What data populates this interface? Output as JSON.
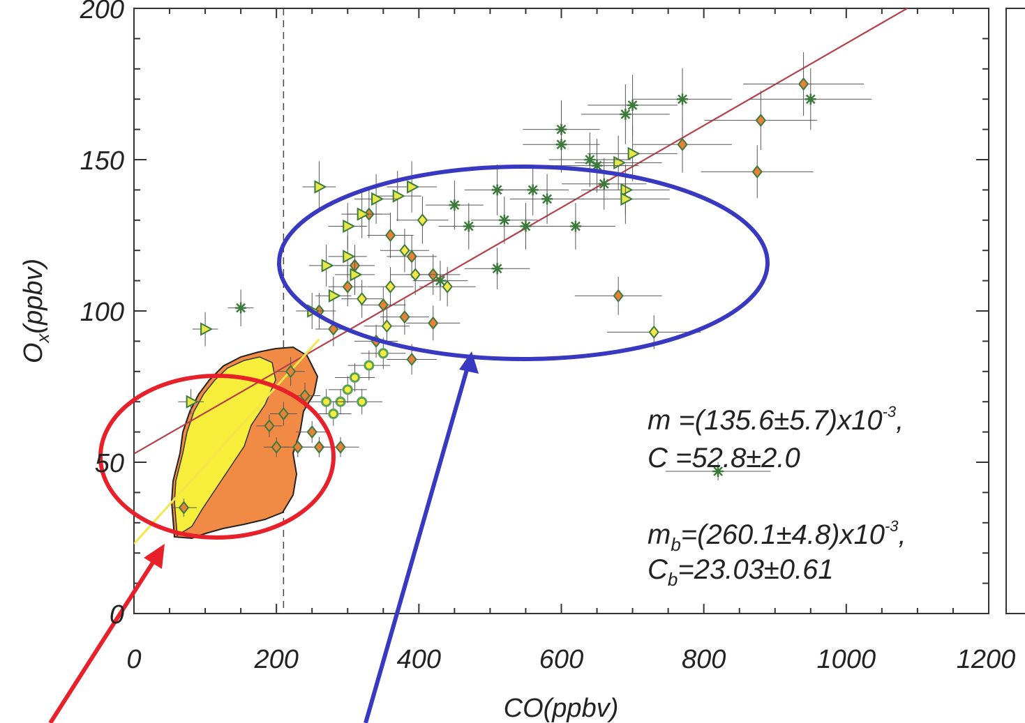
{
  "chart_data": {
    "type": "scatter",
    "title": "",
    "xlabel": "CO(ppbv)",
    "ylabel": "Ox(ppbv)",
    "ylabel_parts": {
      "main": "O",
      "sub": "x",
      "unit": "(ppbv)"
    },
    "xlim": [
      0,
      1200
    ],
    "ylim": [
      0,
      200
    ],
    "x_ticks": [
      "0",
      "200",
      "400",
      "600",
      "800",
      "1000",
      "1200"
    ],
    "y_ticks": [
      "0",
      "50",
      "100",
      "150",
      "200"
    ],
    "reference_line_x": 210,
    "fit_lines": [
      {
        "slope": 0.1356,
        "intercept": 52.8,
        "x_range": [
          0,
          1200
        ],
        "color": "#b5404a"
      },
      {
        "slope": 0.2601,
        "intercept": 23.03,
        "x_range": [
          0,
          260
        ],
        "color": "#f5e64a"
      }
    ],
    "annotations": {
      "m_line": {
        "lhs": "m",
        "sub": "",
        "text": " =(135.6±5.7)x10",
        "exp": "-3",
        "tail": ","
      },
      "c_line": {
        "lhs": "C",
        "sub": "",
        "text": " =52.8±2.0"
      },
      "mb_line": {
        "lhs": "m",
        "sub": "b",
        "text": "=(260.1±4.8)x10",
        "exp": "-3",
        "tail": ","
      },
      "cb_line": {
        "lhs": "C",
        "sub": "b",
        "text": "=23.03±0.61"
      }
    },
    "series": [
      {
        "marker": "diamond",
        "fill": "#e8823a",
        "points": [
          [
            940,
            175
          ],
          [
            880,
            163
          ],
          [
            770,
            155
          ],
          [
            875,
            146
          ],
          [
            680,
            105
          ],
          [
            330,
            132
          ],
          [
            360,
            125
          ],
          [
            390,
            118
          ],
          [
            420,
            112
          ],
          [
            300,
            108
          ],
          [
            350,
            102
          ],
          [
            380,
            98
          ],
          [
            340,
            90
          ],
          [
            420,
            96
          ],
          [
            390,
            84
          ],
          [
            280,
            94
          ],
          [
            260,
            100
          ],
          [
            310,
            115
          ],
          [
            220,
            80
          ],
          [
            240,
            72
          ],
          [
            250,
            60
          ],
          [
            230,
            55
          ],
          [
            260,
            55
          ],
          [
            290,
            55
          ],
          [
            200,
            55
          ],
          [
            190,
            62
          ],
          [
            210,
            66
          ],
          [
            70,
            35
          ]
        ]
      },
      {
        "marker": "diamond",
        "fill": "#f5e64a",
        "points": [
          [
            730,
            93
          ],
          [
            405,
            130
          ],
          [
            380,
            120
          ],
          [
            360,
            108
          ],
          [
            320,
            104
          ],
          [
            395,
            112
          ],
          [
            440,
            108
          ],
          [
            355,
            95
          ]
        ]
      },
      {
        "marker": "triangle-right",
        "fill": "#e6e84a",
        "points": [
          [
            260,
            141
          ],
          [
            390,
            141
          ],
          [
            370,
            138
          ],
          [
            340,
            137
          ],
          [
            320,
            132
          ],
          [
            300,
            128
          ],
          [
            300,
            118
          ],
          [
            310,
            112
          ],
          [
            250,
            100
          ],
          [
            280,
            105
          ],
          [
            270,
            115
          ],
          [
            700,
            152
          ],
          [
            680,
            149
          ],
          [
            690,
            140
          ],
          [
            690,
            137
          ],
          [
            100,
            94
          ],
          [
            80,
            70
          ]
        ]
      },
      {
        "marker": "star",
        "fill": "#e8823a",
        "points": [
          [
            950,
            170
          ],
          [
            770,
            170
          ],
          [
            700,
            168
          ],
          [
            690,
            165
          ],
          [
            600,
            160
          ],
          [
            640,
            150
          ],
          [
            650,
            148
          ],
          [
            600,
            155
          ],
          [
            450,
            135
          ],
          [
            520,
            130
          ],
          [
            470,
            128
          ],
          [
            510,
            140
          ],
          [
            560,
            140
          ],
          [
            580,
            137
          ],
          [
            550,
            128
          ],
          [
            620,
            128
          ],
          [
            510,
            114
          ],
          [
            660,
            142
          ],
          [
            150,
            101
          ],
          [
            430,
            110
          ],
          [
            820,
            47
          ]
        ]
      },
      {
        "marker": "ring",
        "fill": "#5aa05a",
        "points": [
          [
            310,
            78
          ],
          [
            330,
            82
          ],
          [
            350,
            86
          ],
          [
            300,
            74
          ],
          [
            290,
            70
          ],
          [
            270,
            70
          ],
          [
            280,
            66
          ],
          [
            320,
            70
          ]
        ]
      }
    ]
  }
}
